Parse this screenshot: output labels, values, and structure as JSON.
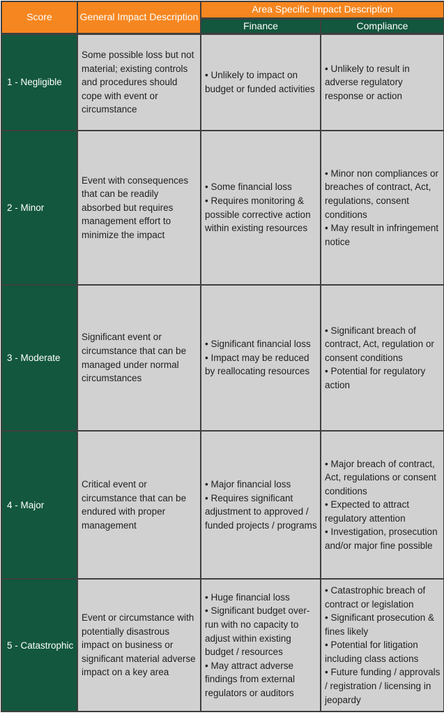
{
  "header": {
    "score": "Score",
    "general": "General Impact Description",
    "area_specific": "Area Specific Impact Description",
    "finance": "Finance",
    "compliance": "Compliance"
  },
  "rows": [
    {
      "score": "1 - Negligible",
      "general": "Some possible loss but not material; existing controls and procedures should cope with event or circumstance",
      "finance": "• Unlikely to impact on budget or funded activities",
      "compliance": "• Unlikely to result in adverse regulatory response or action"
    },
    {
      "score": "2 - Minor",
      "general": "Event with consequences that can be readily absorbed but requires management effort to minimize the impact",
      "finance": "• Some financial loss\n• Requires monitoring & possible corrective action within existing resources",
      "compliance": "• Minor non compliances or breaches of contract, Act, regulations, consent conditions\n• May result in infringement notice"
    },
    {
      "score": "3 - Moderate",
      "general": "Significant event or circumstance that can be managed under normal circumstances",
      "finance": "• Significant financial loss\n• Impact may be reduced by reallocating resources",
      "compliance": "• Significant breach of contract, Act, regulation or consent conditions\n• Potential for regulatory action"
    },
    {
      "score": "4 - Major",
      "general": "Critical event or circumstance that can be endured with proper management",
      "finance": "• Major financial loss\n• Requires significant adjustment to approved / funded projects / programs",
      "compliance": "• Major breach of contract, Act, regulations or consent conditions\n• Expected to attract regulatory attention\n• Investigation, prosecution and/or major fine possible"
    },
    {
      "score": "5 - Catastrophic",
      "general": "Event or circumstance with potentially disastrous impact on business or significant material adverse impact on a key area",
      "finance": "• Huge financial loss\n• Significant budget over-run with no capacity to adjust within existing budget / resources\n• May attract adverse findings from external regulators or auditors",
      "compliance": "• Catastrophic breach of contract or legislation\n• Significant prosecution & fines likely\n• Potential for litigation including class actions\n• Future funding / approvals / registration / licensing in jeopardy"
    }
  ],
  "colors": {
    "header_orange": "#F6861F",
    "header_green": "#12573E",
    "body_gray": "#D1D1D1",
    "border": "#3F3F3F",
    "header_text": "#FFFFFF",
    "body_text": "#1F1F1F"
  }
}
